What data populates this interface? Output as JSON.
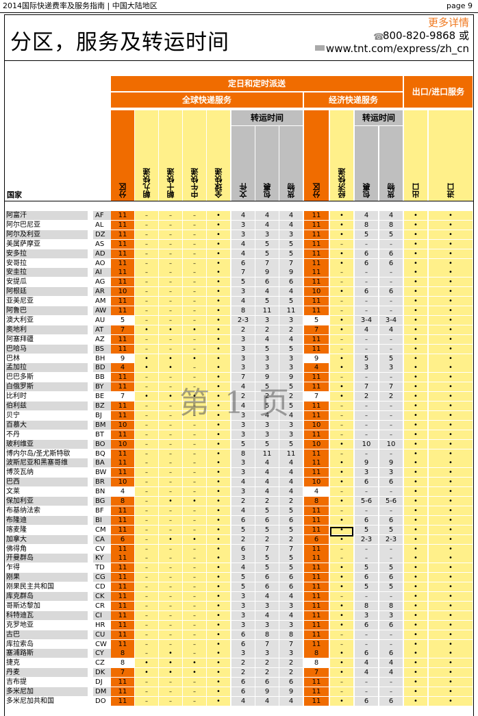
{
  "header": {
    "left": "2014国际快递费率及服务指南 | 中国大陆地区",
    "page": "page 9"
  },
  "title": "分区，服务及转运时间",
  "contact": {
    "more": "更多详情",
    "phone": "800-820-9868 或",
    "web": "www.tnt.com/express/zh_cn"
  },
  "table_headers": {
    "top": "定日和定时派送",
    "global": "全球快递服务",
    "economy": "经济快递服务",
    "export_import": "出口/进口服务",
    "transit1": "转运时间",
    "transit2": "转运时间",
    "country": "国家",
    "cols": [
      "分区",
      "朝九快递",
      "朝十快递",
      "中午快递",
      "全球快递",
      "文件",
      "包裹",
      "货物",
      "分区",
      "经济快递",
      "包裹",
      "货物",
      "出口",
      "进口"
    ]
  },
  "watermark": "第 1 页",
  "colors": {
    "orange": "#f06c00",
    "yellow": "#fff08a",
    "gray": "#bfbfbf"
  },
  "rows": [
    [
      "阿富汗",
      "AF",
      "11",
      "_",
      "_",
      "_",
      "•",
      "4",
      "4",
      "4",
      "11",
      "•",
      "4",
      "4",
      "•",
      "•"
    ],
    [
      "阿尔巴尼亚",
      "AL",
      "11",
      "_",
      "_",
      "_",
      "•",
      "3",
      "4",
      "4",
      "11",
      "•",
      "8",
      "8",
      "•",
      "•"
    ],
    [
      "阿尔及利亚",
      "DZ",
      "11",
      "_",
      "_",
      "_",
      "•",
      "3",
      "3",
      "3",
      "11",
      "•",
      "5",
      "5",
      "•",
      "•"
    ],
    [
      "美属萨摩亚",
      "AS",
      "11",
      "_",
      "_",
      "_",
      "•",
      "4",
      "5",
      "5",
      "11",
      "_",
      "_",
      "_",
      "•",
      "•"
    ],
    [
      "安多拉",
      "AD",
      "11",
      "_",
      "_",
      "_",
      "•",
      "4",
      "5",
      "5",
      "11",
      "•",
      "6",
      "6",
      "•",
      "•"
    ],
    [
      "安哥拉",
      "AO",
      "11",
      "_",
      "_",
      "_",
      "•",
      "6",
      "7",
      "7",
      "11",
      "•",
      "6",
      "6",
      "•",
      "•"
    ],
    [
      "安圭拉",
      "AI",
      "11",
      "_",
      "_",
      "_",
      "•",
      "7",
      "9",
      "9",
      "11",
      "_",
      "_",
      "_",
      "•",
      "•"
    ],
    [
      "安提瓜",
      "AG",
      "11",
      "_",
      "_",
      "_",
      "•",
      "5",
      "6",
      "6",
      "11",
      "_",
      "_",
      "_",
      "•",
      "•"
    ],
    [
      "阿根廷",
      "AR",
      "10",
      "_",
      "_",
      "_",
      "•",
      "3",
      "4",
      "4",
      "10",
      "•",
      "6",
      "6",
      "•",
      "•"
    ],
    [
      "亚美尼亚",
      "AM",
      "11",
      "_",
      "_",
      "_",
      "•",
      "4",
      "5",
      "5",
      "11",
      "_",
      "_",
      "_",
      "•",
      "•"
    ],
    [
      "阿鲁巴",
      "AW",
      "11",
      "_",
      "_",
      "_",
      "•",
      "8",
      "11",
      "11",
      "11",
      "_",
      "_",
      "_",
      "•",
      "•"
    ],
    [
      "澳大利亚",
      "AU",
      "5",
      "_",
      "_",
      "_",
      "•",
      "2-3",
      "3",
      "3",
      "5",
      "•",
      "3-4",
      "3-4",
      "•",
      "•"
    ],
    [
      "奥地利",
      "AT",
      "7",
      "•",
      "•",
      "•",
      "•",
      "2",
      "2",
      "2",
      "7",
      "•",
      "4",
      "4",
      "•",
      "•"
    ],
    [
      "阿塞拜疆",
      "AZ",
      "11",
      "_",
      "_",
      "_",
      "•",
      "3",
      "4",
      "4",
      "11",
      "_",
      "_",
      "_",
      "•",
      "•"
    ],
    [
      "巴哈马",
      "BS",
      "11",
      "_",
      "_",
      "_",
      "•",
      "3",
      "5",
      "5",
      "11",
      "_",
      "_",
      "_",
      "•",
      "•"
    ],
    [
      "巴林",
      "BH",
      "9",
      "•",
      "•",
      "•",
      "•",
      "3",
      "3",
      "3",
      "9",
      "•",
      "5",
      "5",
      "•",
      "•"
    ],
    [
      "孟加拉",
      "BD",
      "4",
      "•",
      "•",
      "_",
      "•",
      "3",
      "3",
      "3",
      "4",
      "•",
      "3",
      "3",
      "•",
      "•"
    ],
    [
      "巴巴多斯",
      "BB",
      "11",
      "_",
      "_",
      "_",
      "•",
      "7",
      "9",
      "9",
      "11",
      "_",
      "_",
      "_",
      "•",
      "•"
    ],
    [
      "白俄罗斯",
      "BY",
      "11",
      "_",
      "_",
      "_",
      "•",
      "4",
      "5",
      "5",
      "11",
      "•",
      "7",
      "7",
      "•",
      "•"
    ],
    [
      "比利时",
      "BE",
      "7",
      "•",
      "•",
      "•",
      "•",
      "2",
      "2",
      "2",
      "7",
      "•",
      "2",
      "2",
      "•",
      "•"
    ],
    [
      "伯利兹",
      "BZ",
      "11",
      "_",
      "_",
      "_",
      "•",
      "4",
      "5",
      "5",
      "11",
      "_",
      "_",
      "_",
      "•",
      "•"
    ],
    [
      "贝宁",
      "BJ",
      "11",
      "_",
      "_",
      "_",
      "•",
      "3",
      "4",
      "4",
      "11",
      "_",
      "_",
      "_",
      "•",
      "•"
    ],
    [
      "百慕大",
      "BM",
      "10",
      "_",
      "_",
      "_",
      "•",
      "3",
      "3",
      "3",
      "10",
      "_",
      "_",
      "_",
      "•",
      "•"
    ],
    [
      "不丹",
      "BT",
      "11",
      "_",
      "_",
      "_",
      "•",
      "3",
      "3",
      "3",
      "11",
      "_",
      "_",
      "_",
      "•",
      "•"
    ],
    [
      "玻利维亚",
      "BO",
      "10",
      "_",
      "_",
      "_",
      "•",
      "5",
      "5",
      "5",
      "10",
      "•",
      "10",
      "10",
      "•",
      "•"
    ],
    [
      "博内尔岛/圣尤斯特歇",
      "BQ",
      "11",
      "_",
      "_",
      "_",
      "•",
      "8",
      "11",
      "11",
      "11",
      "_",
      "_",
      "_",
      "•",
      "•"
    ],
    [
      "波斯尼亚和黑塞哥维",
      "BA",
      "11",
      "_",
      "_",
      "_",
      "•",
      "3",
      "4",
      "4",
      "11",
      "•",
      "9",
      "9",
      "•",
      "•"
    ],
    [
      "博茨瓦纳",
      "BW",
      "11",
      "_",
      "_",
      "_",
      "•",
      "3",
      "4",
      "4",
      "11",
      "•",
      "3",
      "3",
      "•",
      "•"
    ],
    [
      "巴西",
      "BR",
      "10",
      "_",
      "_",
      "_",
      "•",
      "4",
      "4",
      "4",
      "10",
      "•",
      "6",
      "6",
      "•",
      "•"
    ],
    [
      "文莱",
      "BN",
      "4",
      "_",
      "_",
      "_",
      "•",
      "3",
      "4",
      "4",
      "4",
      "_",
      "_",
      "_",
      "•",
      "•"
    ],
    [
      "保加利亚",
      "BG",
      "8",
      "_",
      "•",
      "•",
      "•",
      "2",
      "2",
      "2",
      "8",
      "•",
      "5-6",
      "5-6",
      "•",
      "•"
    ],
    [
      "布基纳法索",
      "BF",
      "11",
      "_",
      "_",
      "_",
      "•",
      "4",
      "5",
      "5",
      "11",
      "_",
      "_",
      "_",
      "•",
      "•"
    ],
    [
      "布隆迪",
      "BI",
      "11",
      "_",
      "_",
      "_",
      "•",
      "6",
      "6",
      "6",
      "11",
      "•",
      "6",
      "6",
      "•",
      "•"
    ],
    [
      "喀麦隆",
      "CM",
      "11",
      "_",
      "_",
      "_",
      "•",
      "5",
      "5",
      "5",
      "11",
      "•",
      "5",
      "5",
      "•",
      "•"
    ],
    [
      "加拿大",
      "CA",
      "6",
      "_",
      "•",
      "•",
      "•",
      "2",
      "2",
      "2",
      "6",
      "•",
      "2-3",
      "2-3",
      "•",
      "•"
    ],
    [
      "佛得角",
      "CV",
      "11",
      "_",
      "_",
      "_",
      "•",
      "6",
      "7",
      "7",
      "11",
      "_",
      "_",
      "_",
      "•",
      "•"
    ],
    [
      "开曼群岛",
      "KY",
      "11",
      "_",
      "_",
      "_",
      "•",
      "3",
      "5",
      "5",
      "11",
      "_",
      "_",
      "_",
      "•",
      "•"
    ],
    [
      "乍得",
      "TD",
      "11",
      "_",
      "_",
      "_",
      "•",
      "4",
      "5",
      "5",
      "11",
      "•",
      "5",
      "5",
      "•",
      "•"
    ],
    [
      "刚果",
      "CG",
      "11",
      "_",
      "_",
      "_",
      "•",
      "5",
      "6",
      "6",
      "11",
      "•",
      "6",
      "6",
      "•",
      "•"
    ],
    [
      "刚果民主共和国",
      "CD",
      "11",
      "_",
      "_",
      "_",
      "•",
      "5",
      "6",
      "6",
      "11",
      "•",
      "5",
      "5",
      "•",
      "•"
    ],
    [
      "库克群岛",
      "CK",
      "11",
      "_",
      "_",
      "_",
      "•",
      "3",
      "4",
      "4",
      "11",
      "_",
      "_",
      "_",
      "•",
      "•"
    ],
    [
      "哥斯达黎加",
      "CR",
      "11",
      "_",
      "_",
      "_",
      "•",
      "3",
      "3",
      "3",
      "11",
      "•",
      "8",
      "8",
      "•",
      "•"
    ],
    [
      "科特迪瓦",
      "CI",
      "11",
      "_",
      "_",
      "_",
      "•",
      "3",
      "4",
      "4",
      "11",
      "•",
      "3",
      "3",
      "•",
      "•"
    ],
    [
      "克罗地亚",
      "HR",
      "11",
      "_",
      "_",
      "_",
      "•",
      "3",
      "3",
      "3",
      "11",
      "•",
      "6",
      "6",
      "•",
      "•"
    ],
    [
      "古巴",
      "CU",
      "11",
      "_",
      "_",
      "_",
      "•",
      "6",
      "8",
      "8",
      "11",
      "_",
      "_",
      "_",
      "•",
      "•"
    ],
    [
      "库拉索岛",
      "CW",
      "11",
      "_",
      "_",
      "_",
      "•",
      "6",
      "7",
      "7",
      "11",
      "_",
      "_",
      "_",
      "•",
      "•"
    ],
    [
      "塞浦路斯",
      "CY",
      "8",
      "_",
      "•",
      "_",
      "•",
      "3",
      "3",
      "3",
      "8",
      "•",
      "6",
      "6",
      "•",
      "•"
    ],
    [
      "捷克",
      "CZ",
      "8",
      "•",
      "•",
      "•",
      "•",
      "2",
      "2",
      "2",
      "8",
      "•",
      "4",
      "4",
      "•",
      "•"
    ],
    [
      "丹麦",
      "DK",
      "7",
      "•",
      "•",
      "•",
      "•",
      "2",
      "2",
      "2",
      "7",
      "•",
      "4",
      "4",
      "•",
      "•"
    ],
    [
      "吉布提",
      "DJ",
      "11",
      "_",
      "_",
      "_",
      "•",
      "6",
      "6",
      "6",
      "11",
      "_",
      "_",
      "_",
      "•",
      "•"
    ],
    [
      "多米尼加",
      "DM",
      "11",
      "_",
      "_",
      "_",
      "•",
      "6",
      "9",
      "9",
      "11",
      "_",
      "_",
      "_",
      "•",
      "•"
    ],
    [
      "多米尼加共和国",
      "DO",
      "11",
      "_",
      "_",
      "_",
      "•",
      "4",
      "4",
      "4",
      "11",
      "•",
      "6",
      "6",
      "•",
      "•"
    ]
  ]
}
